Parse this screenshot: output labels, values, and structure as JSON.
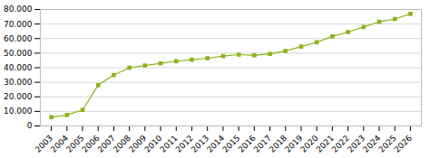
{
  "chart_data": {
    "type": "line",
    "x": [
      2003,
      2004,
      2005,
      2006,
      2007,
      2008,
      2009,
      2010,
      2011,
      2012,
      2013,
      2014,
      2015,
      2016,
      2017,
      2018,
      2019,
      2020,
      2021,
      2022,
      2023,
      2024,
      2025,
      2026
    ],
    "values": [
      6000,
      7500,
      11000,
      28000,
      35000,
      40000,
      41500,
      43000,
      44500,
      45500,
      46500,
      48000,
      49000,
      48500,
      49500,
      51500,
      54500,
      57500,
      61500,
      64500,
      68000,
      71500,
      73500,
      77000
    ],
    "color": "#8db31a",
    "marker": "square",
    "xlim": [
      2002.3,
      2026.7
    ],
    "xticks": [
      2003,
      2004,
      2005,
      2006,
      2007,
      2008,
      2009,
      2010,
      2011,
      2012,
      2013,
      2014,
      2015,
      2016,
      2017,
      2018,
      2019,
      2020,
      2021,
      2022,
      2023,
      2024,
      2025,
      2026
    ],
    "ylim": [
      0,
      80000
    ],
    "yticks": [
      0,
      {
        "value": 10000,
        "label": "10.000"
      },
      {
        "value": 20000,
        "label": "20.000"
      },
      {
        "value": 30000,
        "label": "30.000"
      },
      {
        "value": 40000,
        "label": "40.000"
      },
      {
        "value": 50000,
        "label": "50.000"
      },
      {
        "value": 60000,
        "label": "60.000"
      },
      {
        "value": 70000,
        "label": "70.000"
      },
      {
        "value": 80000,
        "label": "80.000"
      }
    ],
    "grid": true
  }
}
